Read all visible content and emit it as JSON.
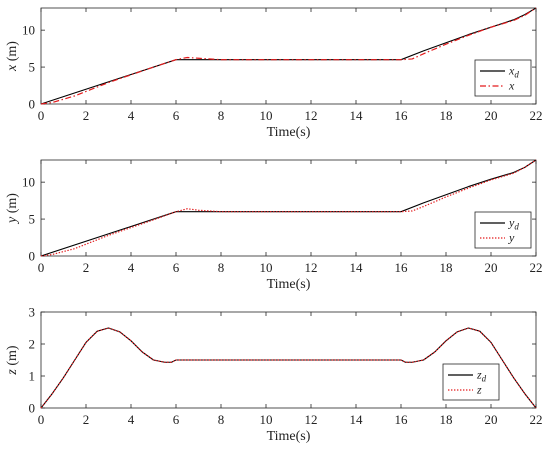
{
  "chart_data": [
    {
      "type": "line",
      "xlabel": "Time(s)",
      "ylabel_var": "x",
      "ylabel_unit": " (m)",
      "xlim": [
        0,
        22
      ],
      "ylim": [
        0,
        13
      ],
      "xticks": [
        "0",
        "2",
        "4",
        "6",
        "8",
        "10",
        "12",
        "14",
        "16",
        "18",
        "20",
        "22"
      ],
      "yticks": [
        "0",
        "5",
        "10"
      ],
      "grid": false,
      "legend": "lower-right",
      "series": [
        {
          "name": "x",
          "sub": "d",
          "color": "#000000",
          "style": "solid",
          "x": [
            0,
            6,
            16,
            17,
            18,
            19,
            20,
            21,
            21.5,
            22
          ],
          "y": [
            0,
            6,
            6,
            7.2,
            8.3,
            9.4,
            10.4,
            11.4,
            12.1,
            13
          ]
        },
        {
          "name": "x",
          "sub": "",
          "color": "#e31a1c",
          "style": "dashdot",
          "x": [
            0,
            0.5,
            1.5,
            3,
            5,
            6,
            6.5,
            7,
            8,
            16,
            16.5,
            17,
            18,
            19,
            20,
            21,
            21.5,
            22
          ],
          "y": [
            0,
            0.2,
            1.1,
            2.9,
            5,
            6,
            6.3,
            6.2,
            6,
            6,
            6.1,
            6.8,
            8.1,
            9.3,
            10.4,
            11.3,
            12,
            13
          ]
        }
      ]
    },
    {
      "type": "line",
      "xlabel": "Time(s)",
      "ylabel_var": "y",
      "ylabel_unit": " (m)",
      "xlim": [
        0,
        22
      ],
      "ylim": [
        0,
        13
      ],
      "xticks": [
        "0",
        "2",
        "4",
        "6",
        "8",
        "10",
        "12",
        "14",
        "16",
        "18",
        "20",
        "22"
      ],
      "yticks": [
        "0",
        "5",
        "10"
      ],
      "grid": false,
      "legend": "lower-right",
      "series": [
        {
          "name": "y",
          "sub": "d",
          "color": "#000000",
          "style": "solid",
          "x": [
            0,
            6,
            16,
            17,
            18,
            19,
            20,
            21,
            21.5,
            22
          ],
          "y": [
            0,
            6,
            6,
            7.2,
            8.3,
            9.4,
            10.4,
            11.3,
            12,
            13
          ]
        },
        {
          "name": "y",
          "sub": "",
          "color": "#e31a1c",
          "style": "dotted",
          "x": [
            0,
            0.5,
            1.5,
            3,
            5,
            6,
            6.5,
            7,
            8,
            16,
            16.5,
            17,
            18,
            19,
            20,
            21,
            21.5,
            22
          ],
          "y": [
            0,
            0.2,
            1,
            2.8,
            4.9,
            6,
            6.4,
            6.2,
            6,
            6,
            6.1,
            6.7,
            8,
            9.2,
            10.3,
            11.2,
            12,
            13
          ]
        }
      ]
    },
    {
      "type": "line",
      "xlabel": "Time(s)",
      "ylabel_var": "z",
      "ylabel_unit": " (m)",
      "xlim": [
        0,
        22
      ],
      "ylim": [
        0,
        3
      ],
      "xticks": [
        "0",
        "2",
        "4",
        "6",
        "8",
        "10",
        "12",
        "14",
        "16",
        "18",
        "20",
        "22"
      ],
      "yticks": [
        "0",
        "1",
        "2",
        "3"
      ],
      "grid": false,
      "legend": "lower-right",
      "series": [
        {
          "name": "z",
          "sub": "d",
          "color": "#000000",
          "style": "solid",
          "x": [
            0,
            0.5,
            1,
            1.5,
            2,
            2.5,
            3,
            3.5,
            4,
            4.5,
            5,
            5.5,
            5.8,
            6,
            16,
            16.2,
            16.5,
            17,
            17.5,
            18,
            18.5,
            19,
            19.5,
            20,
            20.5,
            21,
            21.5,
            22
          ],
          "y": [
            0,
            0.45,
            0.95,
            1.5,
            2.05,
            2.4,
            2.5,
            2.38,
            2.1,
            1.75,
            1.5,
            1.43,
            1.43,
            1.5,
            1.5,
            1.43,
            1.43,
            1.5,
            1.75,
            2.1,
            2.38,
            2.5,
            2.4,
            2.05,
            1.5,
            0.95,
            0.45,
            0
          ]
        },
        {
          "name": "z",
          "sub": "",
          "color": "#e31a1c",
          "style": "dotted",
          "x": [
            0,
            0.5,
            1,
            1.5,
            2,
            2.5,
            3,
            3.5,
            4,
            4.5,
            5,
            5.5,
            5.8,
            6,
            16,
            16.2,
            16.5,
            17,
            17.5,
            18,
            18.5,
            19,
            19.5,
            20,
            20.5,
            21,
            21.5,
            22
          ],
          "y": [
            0,
            0.45,
            0.95,
            1.5,
            2.05,
            2.4,
            2.5,
            2.38,
            2.1,
            1.75,
            1.5,
            1.43,
            1.43,
            1.5,
            1.5,
            1.43,
            1.43,
            1.5,
            1.75,
            2.1,
            2.38,
            2.5,
            2.4,
            2.05,
            1.5,
            0.95,
            0.45,
            0
          ]
        }
      ]
    }
  ]
}
